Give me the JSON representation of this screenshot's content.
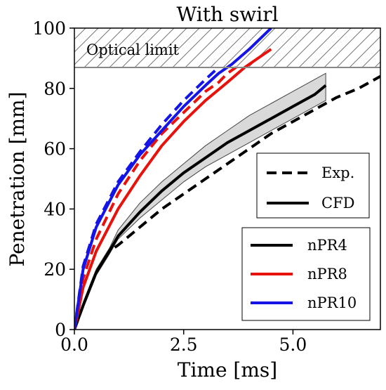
{
  "chart_data": {
    "type": "line",
    "title": "With swirl",
    "xlabel": "Time [ms]",
    "ylabel": "Penetration [mm]",
    "xlim": [
      0,
      7.0
    ],
    "ylim": [
      0,
      100
    ],
    "xticks": [
      "0.0",
      "2.5",
      "5.0"
    ],
    "xtick_values": [
      0,
      2.5,
      5.0
    ],
    "yticks": [
      "0",
      "20",
      "40",
      "60",
      "80",
      "100"
    ],
    "ytick_values": [
      0,
      20,
      40,
      60,
      80,
      100
    ],
    "grid": false,
    "annotation": {
      "text": "Optical limit",
      "y_from": 87,
      "y_to": 100,
      "hatched": true
    },
    "legend_style": {
      "placement": "center-right",
      "entries": [
        {
          "label": "Exp.",
          "dash": "dashed",
          "color": "#000000"
        },
        {
          "label": "CFD",
          "dash": "solid",
          "color": "#000000"
        }
      ]
    },
    "legend_series": {
      "placement": "lower-right",
      "entries": [
        {
          "label": "nPR4",
          "color": "#000000"
        },
        {
          "label": "nPR8",
          "color": "#e8120c"
        },
        {
          "label": "nPR10",
          "color": "#1414e6"
        }
      ]
    },
    "series": [
      {
        "name": "nPR4",
        "kind": "CFD",
        "color": "#000000",
        "x": [
          0,
          0.2,
          0.5,
          0.8,
          1.0,
          1.5,
          2.0,
          2.5,
          3.0,
          3.5,
          4.0,
          4.5,
          5.0,
          5.5,
          5.75
        ],
        "y": [
          0,
          8,
          19,
          26,
          31,
          39,
          46,
          52,
          57,
          62,
          66,
          70,
          74,
          78,
          81
        ],
        "band_upper": [
          0,
          9,
          20,
          27,
          33,
          42,
          49,
          55,
          61,
          66,
          71,
          75,
          79,
          83,
          85
        ],
        "band_lower": [
          0,
          7,
          18,
          25,
          30,
          37,
          43,
          49,
          54,
          58,
          62,
          66,
          70,
          74,
          76
        ]
      },
      {
        "name": "nPR4",
        "kind": "Exp.",
        "color": "#000000",
        "x": [
          0,
          0.2,
          0.5,
          0.8,
          1.0,
          1.5,
          2.0,
          2.5,
          3.0,
          3.5,
          4.0,
          4.5,
          5.0,
          5.5,
          6.0,
          6.5,
          7.0
        ],
        "y": [
          0,
          8,
          19,
          26,
          28,
          34,
          40,
          45,
          50,
          55,
          60,
          65,
          69,
          73,
          77,
          80,
          84
        ]
      },
      {
        "name": "nPR8",
        "kind": "CFD",
        "color": "#e8120c",
        "x": [
          0,
          0.2,
          0.5,
          1.0,
          1.5,
          2.0,
          2.5,
          3.0,
          3.5,
          3.9,
          4.2,
          4.5
        ],
        "y": [
          0,
          14,
          26,
          40,
          51,
          61,
          69,
          76,
          82,
          87,
          90,
          93
        ]
      },
      {
        "name": "nPR8",
        "kind": "Exp.",
        "color": "#e8120c",
        "x": [
          0,
          0.2,
          0.5,
          1.0,
          1.5,
          2.0,
          2.5,
          3.0,
          3.3,
          3.5,
          3.7
        ],
        "y": [
          0,
          17,
          30,
          45,
          56,
          65,
          72,
          79,
          82,
          85,
          87
        ]
      },
      {
        "name": "nPR10",
        "kind": "CFD",
        "color": "#1414e6",
        "x": [
          0,
          0.2,
          0.5,
          1.0,
          1.5,
          2.0,
          2.5,
          3.0,
          3.3,
          3.6,
          4.0,
          4.5
        ],
        "y": [
          0,
          20,
          34,
          48,
          58,
          66,
          74,
          81,
          85,
          88,
          93,
          100
        ]
      },
      {
        "name": "nPR10",
        "kind": "Exp.",
        "color": "#1414e6",
        "x": [
          0,
          0.2,
          0.5,
          1.0,
          1.5,
          2.0,
          2.5,
          3.0,
          3.3
        ],
        "y": [
          0,
          21,
          35,
          49,
          59,
          68,
          76,
          83,
          87
        ]
      }
    ]
  }
}
